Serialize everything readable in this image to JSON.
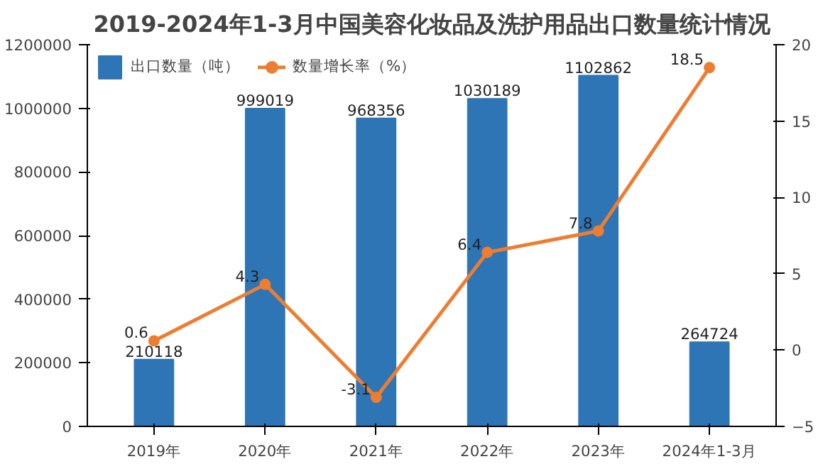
{
  "chart_data": {
    "type": "bar",
    "title": "2019-2024年1-3月中国美容化妆品及洗护用品出口数量统计情况",
    "categories": [
      "2019年",
      "2020年",
      "2021年",
      "2022年",
      "2023年",
      "2024年1-3月"
    ],
    "series": [
      {
        "name": "出口数量（吨）",
        "color": "#2e75b6",
        "values": [
          210118,
          999019,
          968356,
          1030189,
          1102862,
          264724
        ]
      },
      {
        "name": "数量增长率（%）",
        "type": "line",
        "axis": "y2",
        "color": "#ed7d31",
        "values": [
          0.6,
          4.3,
          -3.1,
          6.4,
          7.8,
          18.5
        ]
      }
    ],
    "ylim": [
      0,
      1200000
    ],
    "yticks": [
      0,
      200000,
      400000,
      600000,
      800000,
      1000000,
      1200000
    ],
    "y2lim": [
      -5,
      20
    ],
    "y2ticks": [
      -5,
      0,
      5,
      10,
      15,
      20
    ],
    "data_labels": true,
    "legend": "top",
    "marker": "circle",
    "grid": false
  }
}
